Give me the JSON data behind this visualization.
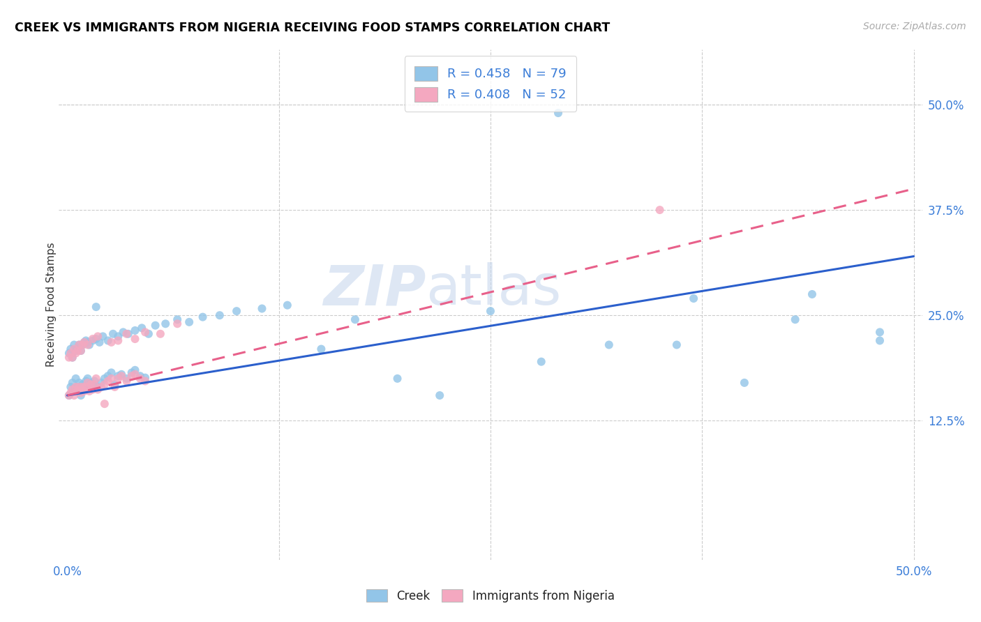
{
  "title": "CREEK VS IMMIGRANTS FROM NIGERIA RECEIVING FOOD STAMPS CORRELATION CHART",
  "source": "Source: ZipAtlas.com",
  "ylabel": "Receiving Food Stamps",
  "ytick_values": [
    0.125,
    0.25,
    0.375,
    0.5
  ],
  "xtick_values": [
    0.0,
    0.125,
    0.25,
    0.375,
    0.5
  ],
  "xlim": [
    -0.005,
    0.505
  ],
  "ylim": [
    -0.04,
    0.565
  ],
  "creek_color": "#92C5E8",
  "nigeria_color": "#F4A8C0",
  "creek_line_color": "#2B5FCC",
  "nigeria_line_color": "#E8608A",
  "creek_R": 0.458,
  "creek_N": 79,
  "nigeria_R": 0.408,
  "nigeria_N": 52,
  "creek_x": [
    0.001,
    0.002,
    0.003,
    0.004,
    0.005,
    0.006,
    0.007,
    0.008,
    0.009,
    0.01,
    0.011,
    0.012,
    0.013,
    0.014,
    0.015,
    0.016,
    0.017,
    0.018,
    0.02,
    0.022,
    0.024,
    0.026,
    0.028,
    0.03,
    0.032,
    0.035,
    0.038,
    0.04,
    0.043,
    0.046,
    0.001,
    0.002,
    0.003,
    0.004,
    0.005,
    0.006,
    0.007,
    0.008,
    0.009,
    0.01,
    0.011,
    0.012,
    0.013,
    0.015,
    0.017,
    0.019,
    0.021,
    0.024,
    0.027,
    0.03,
    0.033,
    0.036,
    0.04,
    0.044,
    0.048,
    0.052,
    0.058,
    0.065,
    0.072,
    0.08,
    0.09,
    0.1,
    0.115,
    0.13,
    0.15,
    0.17,
    0.195,
    0.22,
    0.25,
    0.28,
    0.32,
    0.36,
    0.4,
    0.44,
    0.48,
    0.37,
    0.29,
    0.43,
    0.48
  ],
  "creek_y": [
    0.155,
    0.165,
    0.17,
    0.16,
    0.175,
    0.165,
    0.17,
    0.155,
    0.168,
    0.162,
    0.172,
    0.175,
    0.165,
    0.17,
    0.168,
    0.172,
    0.26,
    0.165,
    0.17,
    0.175,
    0.178,
    0.182,
    0.168,
    0.178,
    0.18,
    0.175,
    0.182,
    0.185,
    0.178,
    0.176,
    0.205,
    0.21,
    0.2,
    0.215,
    0.208,
    0.21,
    0.215,
    0.208,
    0.215,
    0.218,
    0.22,
    0.218,
    0.215,
    0.22,
    0.222,
    0.218,
    0.225,
    0.22,
    0.228,
    0.225,
    0.23,
    0.228,
    0.232,
    0.235,
    0.228,
    0.238,
    0.24,
    0.245,
    0.242,
    0.248,
    0.25,
    0.255,
    0.258,
    0.262,
    0.21,
    0.245,
    0.175,
    0.155,
    0.255,
    0.195,
    0.215,
    0.215,
    0.17,
    0.275,
    0.22,
    0.27,
    0.49,
    0.245,
    0.23
  ],
  "nigeria_x": [
    0.001,
    0.002,
    0.003,
    0.004,
    0.005,
    0.006,
    0.007,
    0.008,
    0.009,
    0.01,
    0.011,
    0.012,
    0.013,
    0.014,
    0.015,
    0.016,
    0.017,
    0.018,
    0.02,
    0.022,
    0.024,
    0.026,
    0.028,
    0.03,
    0.032,
    0.035,
    0.038,
    0.04,
    0.043,
    0.046,
    0.001,
    0.002,
    0.003,
    0.004,
    0.005,
    0.006,
    0.007,
    0.008,
    0.009,
    0.01,
    0.012,
    0.015,
    0.018,
    0.022,
    0.026,
    0.03,
    0.035,
    0.04,
    0.046,
    0.055,
    0.065,
    0.35
  ],
  "nigeria_y": [
    0.155,
    0.158,
    0.162,
    0.155,
    0.165,
    0.16,
    0.165,
    0.158,
    0.165,
    0.16,
    0.165,
    0.17,
    0.16,
    0.168,
    0.162,
    0.168,
    0.175,
    0.162,
    0.165,
    0.168,
    0.172,
    0.175,
    0.165,
    0.175,
    0.178,
    0.172,
    0.178,
    0.18,
    0.175,
    0.172,
    0.2,
    0.205,
    0.2,
    0.21,
    0.205,
    0.208,
    0.215,
    0.208,
    0.215,
    0.218,
    0.215,
    0.222,
    0.225,
    0.145,
    0.218,
    0.22,
    0.228,
    0.222,
    0.23,
    0.228,
    0.24,
    0.375
  ],
  "creek_line_x": [
    0.0,
    0.5
  ],
  "nigeria_line_x": [
    0.0,
    0.5
  ],
  "creek_line_y": [
    0.155,
    0.32
  ],
  "nigeria_line_y": [
    0.155,
    0.4
  ]
}
